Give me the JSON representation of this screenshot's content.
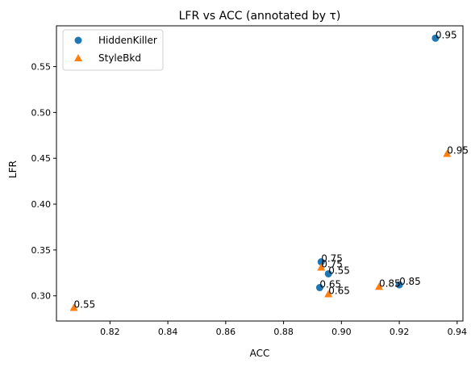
{
  "chart_data": {
    "type": "scatter",
    "title": "LFR vs ACC (annotated by τ)",
    "xlabel": "ACC",
    "ylabel": "LFR",
    "xlim": [
      0.8015,
      0.942
    ],
    "ylim": [
      0.2725,
      0.5945
    ],
    "x_ticks": [
      0.82,
      0.84,
      0.86,
      0.88,
      0.9,
      0.92,
      0.94
    ],
    "x_tick_labels": [
      "0.82",
      "0.84",
      "0.86",
      "0.88",
      "0.90",
      "0.92",
      "0.94"
    ],
    "y_ticks": [
      0.3,
      0.35,
      0.4,
      0.45,
      0.5,
      0.55
    ],
    "y_tick_labels": [
      "0.30",
      "0.35",
      "0.40",
      "0.45",
      "0.50",
      "0.55"
    ],
    "grid": false,
    "legend_position": "top-left",
    "series": [
      {
        "name": "HiddenKiller",
        "marker": "circle",
        "color": "#1f77b4",
        "points": [
          {
            "x": 0.9325,
            "y": 0.581,
            "label": "0.95"
          },
          {
            "x": 0.92,
            "y": 0.312,
            "label": "0.85"
          },
          {
            "x": 0.893,
            "y": 0.337,
            "label": "0.75"
          },
          {
            "x": 0.8925,
            "y": 0.309,
            "label": "0.65"
          },
          {
            "x": 0.8955,
            "y": 0.324,
            "label": "0.55"
          }
        ]
      },
      {
        "name": "StyleBkd",
        "marker": "triangle",
        "color": "#ff7f0e",
        "points": [
          {
            "x": 0.9365,
            "y": 0.455,
            "label": "0.95"
          },
          {
            "x": 0.913,
            "y": 0.31,
            "label": "0.85"
          },
          {
            "x": 0.893,
            "y": 0.331,
            "label": "0.75"
          },
          {
            "x": 0.8955,
            "y": 0.302,
            "label": "0.65"
          },
          {
            "x": 0.8075,
            "y": 0.287,
            "label": "0.55"
          }
        ]
      }
    ]
  }
}
